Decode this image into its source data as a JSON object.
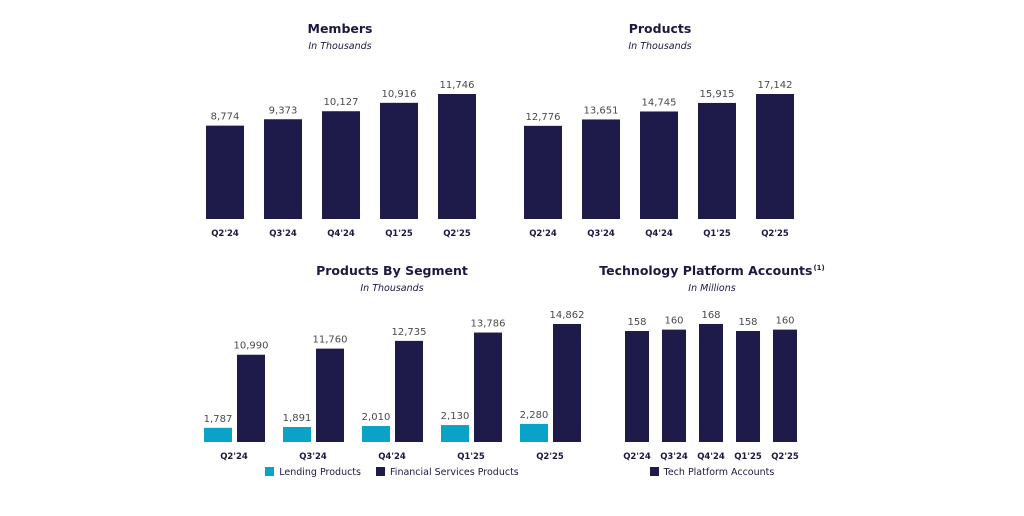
{
  "colors": {
    "navy": "#1e1a4a",
    "teal": "#0aa3c8",
    "text": "#1c1940",
    "value": "#4a4a4a"
  },
  "chart_data": [
    {
      "type": "bar",
      "title": "Members",
      "subtitle": "In Thousands",
      "categories": [
        "Q2'24",
        "Q3'24",
        "Q4'24",
        "Q1'25",
        "Q2'25"
      ],
      "series": [
        {
          "values": [
            8774,
            9373,
            10127,
            10916,
            11746
          ],
          "labels": [
            "8,774",
            "9,373",
            "10,127",
            "10,916",
            "11,746"
          ]
        }
      ],
      "ylim": [
        0,
        11746
      ]
    },
    {
      "type": "bar",
      "title": "Products",
      "subtitle": "In Thousands",
      "categories": [
        "Q2'24",
        "Q3'24",
        "Q4'24",
        "Q1'25",
        "Q2'25"
      ],
      "series": [
        {
          "values": [
            12776,
            13651,
            14745,
            15915,
            17142
          ],
          "labels": [
            "12,776",
            "13,651",
            "14,745",
            "15,915",
            "17,142"
          ]
        }
      ],
      "ylim": [
        0,
        17142
      ]
    },
    {
      "type": "bar",
      "title": "Products By Segment",
      "subtitle": "In Thousands",
      "categories": [
        "Q2'24",
        "Q3'24",
        "Q4'24",
        "Q1'25",
        "Q2'25"
      ],
      "series": [
        {
          "name": "Lending Products",
          "values": [
            1787,
            1891,
            2010,
            2130,
            2280
          ],
          "labels": [
            "1,787",
            "1,891",
            "2,010",
            "2,130",
            "2,280"
          ]
        },
        {
          "name": "Financial Services Products",
          "values": [
            10990,
            11760,
            12735,
            13786,
            14862
          ],
          "labels": [
            "10,990",
            "11,760",
            "12,735",
            "13,786",
            "14,862"
          ]
        }
      ],
      "ylim": [
        0,
        14862
      ]
    },
    {
      "type": "bar",
      "title": "Technology Platform Accounts",
      "title_superscript": "(1)",
      "subtitle": "In Millions",
      "categories": [
        "Q2'24",
        "Q3'24",
        "Q4'24",
        "Q1'25",
        "Q2'25"
      ],
      "series": [
        {
          "name": "Tech Platform Accounts",
          "values": [
            158,
            160,
            168,
            158,
            160
          ],
          "labels": [
            "158",
            "160",
            "168",
            "158",
            "160"
          ]
        }
      ],
      "ylim": [
        0,
        168
      ]
    }
  ]
}
